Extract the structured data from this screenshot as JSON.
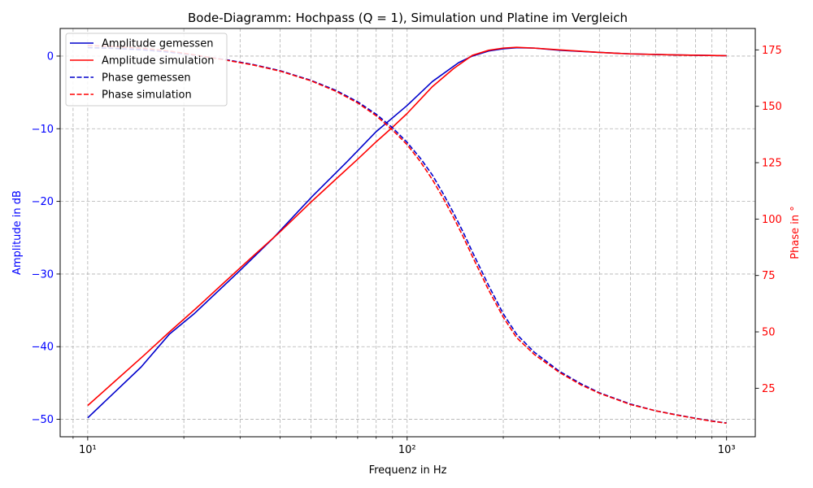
{
  "chart_data": {
    "type": "line",
    "title": "Bode-Diagramm: Hochpass (Q = 1), Simulation und Platine im Vergleich",
    "xlabel": "Frequenz in Hz",
    "ylabel_left": "Amplitude in dB",
    "ylabel_right": "Phase in °",
    "x_scale": "log",
    "xlim": [
      8.2,
      1230
    ],
    "ylim_left": [
      -52.4,
      3.8
    ],
    "ylim_right": [
      3.5,
      184.5
    ],
    "x_ticks": [
      {
        "value": 10,
        "label": "10¹"
      },
      {
        "value": 100,
        "label": "10²"
      },
      {
        "value": 1000,
        "label": "10³"
      }
    ],
    "y_ticks_left": [
      {
        "value": 0,
        "label": "0"
      },
      {
        "value": -10,
        "label": "−10"
      },
      {
        "value": -20,
        "label": "−20"
      },
      {
        "value": -30,
        "label": "−30"
      },
      {
        "value": -40,
        "label": "−40"
      },
      {
        "value": -50,
        "label": "−50"
      }
    ],
    "y_ticks_right": [
      {
        "value": 25,
        "label": "25"
      },
      {
        "value": 50,
        "label": "50"
      },
      {
        "value": 75,
        "label": "75"
      },
      {
        "value": 100,
        "label": "100"
      },
      {
        "value": 125,
        "label": "125"
      },
      {
        "value": 150,
        "label": "150"
      },
      {
        "value": 175,
        "label": "175"
      }
    ],
    "grid": true,
    "legend_position": "top-left",
    "colors": {
      "left_axis": "#0000ff",
      "right_axis": "#ff0000",
      "grid": "#b0b0b0"
    },
    "series": [
      {
        "name": "Amplitude gemessen",
        "axis": "left",
        "color": "#0000cc",
        "dash": "solid",
        "x": [
          10,
          14.7,
          18,
          21.5,
          30,
          38,
          50,
          65,
          80,
          100,
          120,
          145,
          160,
          180,
          200,
          220,
          250,
          300,
          400,
          500,
          700,
          1000
        ],
        "y": [
          -49.8,
          -42.8,
          -38.3,
          -35.5,
          -29.5,
          -25.1,
          -19.5,
          -14.5,
          -10.4,
          -6.8,
          -3.5,
          -0.9,
          0,
          0.7,
          1.0,
          1.15,
          1.1,
          0.8,
          0.5,
          0.3,
          0.15,
          0.05
        ]
      },
      {
        "name": "Amplitude simulation",
        "axis": "left",
        "color": "#ff0000",
        "dash": "solid",
        "x": [
          10,
          12,
          15,
          18,
          22,
          27,
          33,
          40,
          50,
          60,
          70,
          80,
          90,
          100,
          120,
          140,
          160,
          180,
          200,
          220,
          250,
          300,
          400,
          500,
          700,
          1000
        ],
        "y": [
          -48.1,
          -45.0,
          -41.2,
          -38.0,
          -34.6,
          -31.0,
          -27.5,
          -24.2,
          -20.1,
          -16.9,
          -14.2,
          -11.8,
          -9.8,
          -7.9,
          -4.2,
          -1.7,
          0.1,
          0.8,
          1.1,
          1.2,
          1.1,
          0.85,
          0.5,
          0.3,
          0.15,
          0.05
        ]
      },
      {
        "name": "Phase gemessen",
        "axis": "right",
        "color": "#0000cc",
        "dash": "dashed",
        "x": [
          10,
          12,
          15,
          18,
          22,
          27,
          33,
          40,
          50,
          60,
          70,
          80,
          90,
          100,
          110,
          120,
          130,
          140,
          150,
          160,
          180,
          200,
          220,
          250,
          300,
          350,
          400,
          500,
          600,
          700,
          800,
          900,
          1000
        ],
        "y": [
          176,
          175.7,
          175,
          174,
          172.5,
          170.7,
          168.5,
          165.8,
          161.5,
          157,
          152,
          146.5,
          140.5,
          134,
          127,
          119.5,
          111,
          102.5,
          94,
          85.5,
          70.5,
          58,
          49,
          41,
          32.5,
          27,
          23,
          18,
          15,
          13.2,
          11.7,
          10.5,
          9.6
        ]
      },
      {
        "name": "Phase simulation",
        "axis": "right",
        "color": "#ff0000",
        "dash": "dashed",
        "x": [
          10,
          12,
          15,
          18,
          22,
          27,
          33,
          40,
          50,
          60,
          70,
          80,
          90,
          100,
          110,
          120,
          130,
          140,
          150,
          160,
          180,
          200,
          220,
          250,
          300,
          350,
          400,
          500,
          600,
          700,
          800,
          900,
          1000
        ],
        "y": [
          177,
          176.5,
          175.7,
          174.5,
          172.6,
          170.5,
          168.3,
          165.6,
          161.3,
          156.6,
          151.5,
          145.8,
          139.5,
          133,
          125.5,
          117.5,
          109,
          100.5,
          92,
          83.5,
          68.5,
          56.5,
          47.5,
          40,
          32,
          26.5,
          22.8,
          17.8,
          15,
          13.1,
          11.6,
          10.4,
          9.5
        ]
      }
    ]
  }
}
